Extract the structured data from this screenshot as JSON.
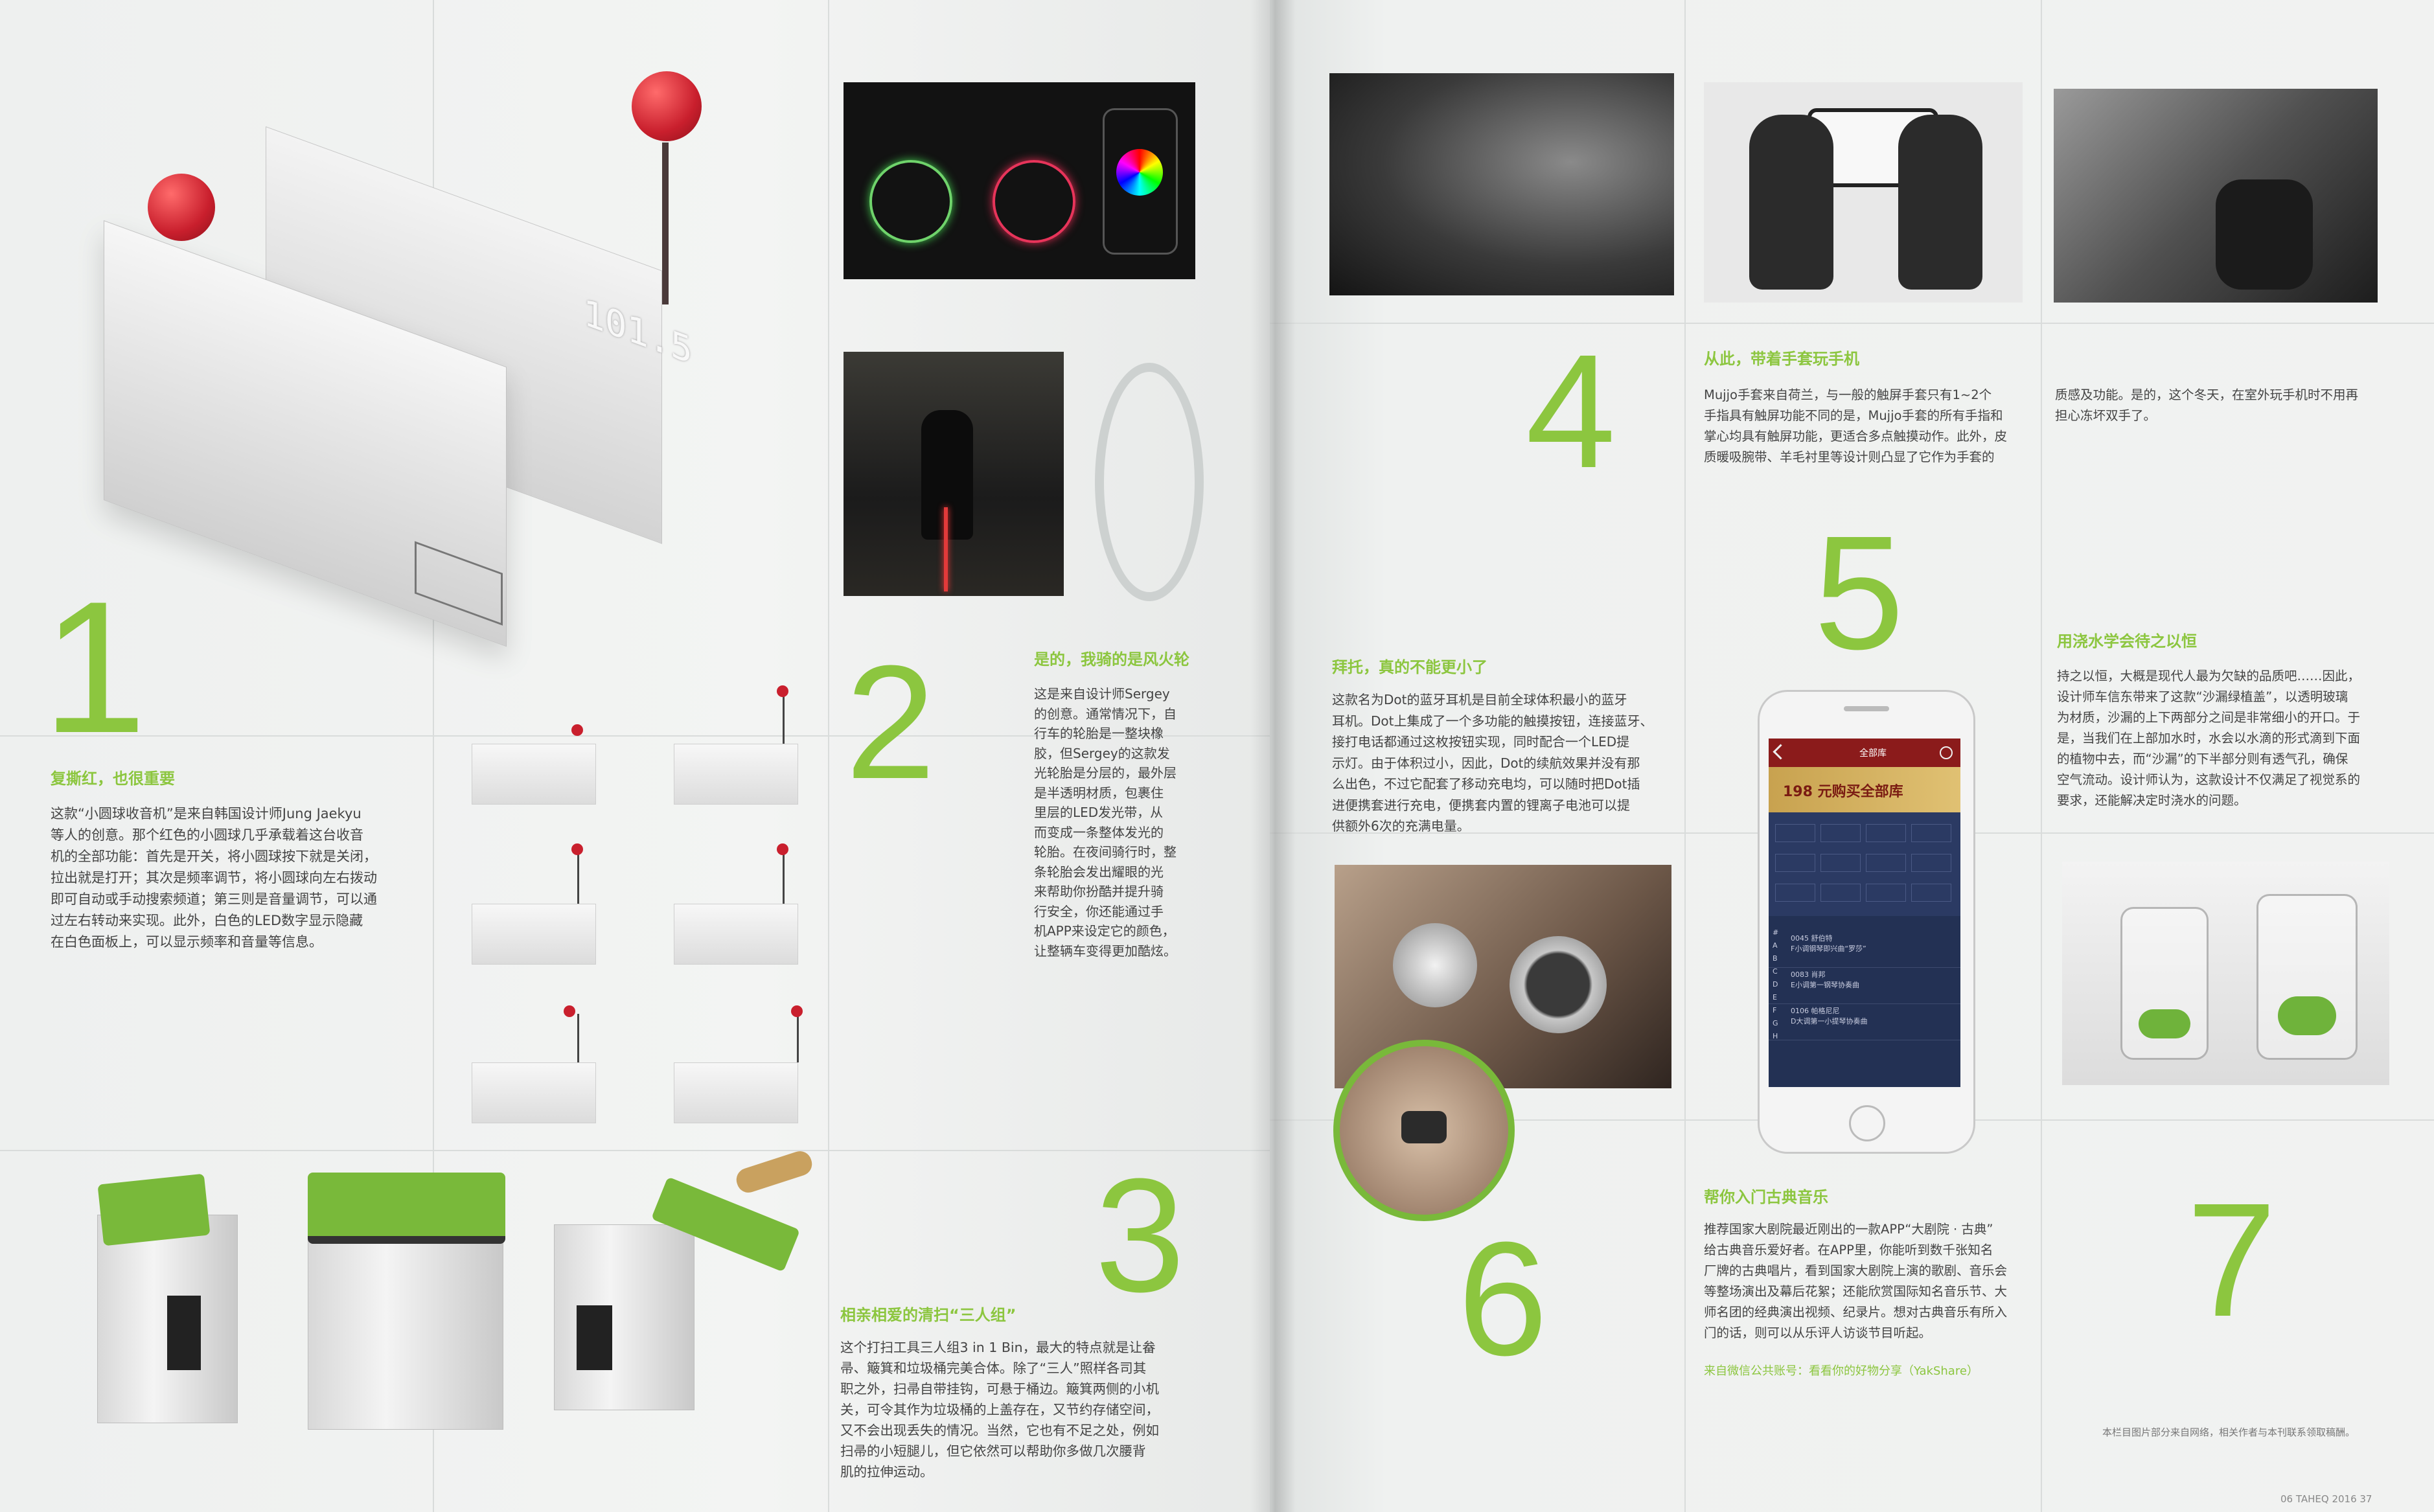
{
  "colors": {
    "accent_green": "#8cc63f",
    "ball_red": "#c91f2d",
    "paper": "#eef0ef"
  },
  "left_page": {
    "radio_panel_text": "101.5",
    "item1": {
      "number": "1",
      "heading": "复撕红，也很重要",
      "lines": [
        "这款“小圆球收音机”是来自韩国设计师Jung Jaekyu",
        "等人的创意。那个红色的小圆球几乎承载着这台收音",
        "机的全部功能：首先是开关，将小圆球按下就是关闭，",
        "拉出就是打开；其次是频率调节，将小圆球向左右拨动",
        "即可自动或手动搜索频道；第三则是音量调节，可以通",
        "过左右转动来实现。此外，白色的LED数字显示隐藏",
        "在白色面板上，可以显示频率和音量等信息。"
      ]
    },
    "item2": {
      "number": "2",
      "heading": "是的，我骑的是风火轮",
      "lines": [
        "这是来自设计师Sergey",
        "的创意。通常情况下，自",
        "行车的轮胎是一整块橡",
        "胶，但Sergey的这款发",
        "光轮胎是分层的，最外层",
        "是半透明材质，包裹住",
        "里层的LED发光带，从",
        "而变成一条整体发光的",
        "轮胎。在夜间骑行时，整",
        "条轮胎会发出耀眼的光",
        "来帮助你扮酷并提升骑",
        "行安全，你还能通过手",
        "机APP来设定它的颜色，",
        "让整辆车变得更加酷炫。"
      ]
    },
    "item3": {
      "number": "3",
      "heading": "相亲相爱的清扫“三人组”",
      "lines": [
        "这个打扫工具三人组3 in 1 Bin，最大的特点就是让畚",
        "帚、簸箕和垃圾桶完美合体。除了“三人”照样各司其",
        "职之外，扫帚自带挂钩，可悬于桶边。簸箕两侧的小机",
        "关，可令其作为垃圾桶的上盖存在，又节约存储空间，",
        "又不会出现丢失的情况。当然，它也有不足之处，例如",
        "扫帚的小短腿儿，但它依然可以帮助你多做几次腰背",
        "肌的拉伸运动。"
      ]
    }
  },
  "right_page": {
    "item4": {
      "number": "4",
      "heading": "从此，带着手套玩手机",
      "lines": [
        "Mujjo手套来自荷兰，与一般的触屏手套只有1~2个",
        "手指具有触屏功能不同的是，Mujjo手套的所有手指和",
        "掌心均具有触屏功能，更适合多点触摸动作。此外，皮",
        "质暖吸腕带、羊毛衬里等设计则凸显了它作为手套的"
      ],
      "continued_lines": [
        "质感及功能。是的，这个冬天，在室外玩手机时不用再",
        "担心冻坏双手了。"
      ]
    },
    "item5": {
      "number": "5",
      "heading": "帮你入门古典音乐",
      "lines": [
        "推荐国家大剧院最近刚出的一款APP“大剧院 · 古典”",
        "给古典音乐爱好者。在APP里，你能听到数千张知名",
        "厂牌的古典唱片，看到国家大剧院上演的歌剧、音乐会",
        "等整场演出及幕后花絮；还能欣赏国际知名音乐节、大",
        "师名团的经典演出视频、纪录片。想对古典音乐有所入",
        "门的话，则可以从乐评人访谈节目听起。"
      ],
      "source": "来自微信公共账号：看看你的好物分享（YakShare）"
    },
    "item6": {
      "number": "6",
      "heading": "拜托，真的不能更小了",
      "lines": [
        "这款名为Dot的蓝牙耳机是目前全球体积最小的蓝牙",
        "耳机。Dot上集成了一个多功能的触摸按钮，连接蓝牙、",
        "接打电话都通过这枚按钮实现，同时配合一个LED提",
        "示灯。由于体积过小，因此，Dot的续航效果并没有那",
        "么出色，不过它配套了移动充电均，可以随时把Dot插",
        "进便携套进行充电，便携套内置的锂离子电池可以提",
        "供额外6次的充满电量。"
      ]
    },
    "item7": {
      "number": "7",
      "heading": "用浇水学会待之以恒",
      "lines": [
        "持之以恒，大概是现代人最为欠缺的品质吧……因此，",
        "设计师车信东带来了这款“沙漏绿植盖”，以透明玻璃",
        "为材质，沙漏的上下两部分之间是非常细小的开口。于",
        "是，当我们在上部加水时，水会以水滴的形式滴到下面",
        "的植物中去，而“沙漏”的下半部分则有透气孔，确保",
        "空气流动。设计师认为，这款设计不仅满足了视觉系的",
        "要求，还能解决定时浇水的问题。"
      ]
    },
    "phone_app": {
      "top_tab": "全部库",
      "promo": "198 元购买全部库",
      "rows": [
        {
          "id": "0045",
          "title": "舒伯特",
          "sub": "F小调钢琴即兴曲“罗莎”"
        },
        {
          "id": "0083",
          "title": "肖邦",
          "sub": "E小调第一钢琴协奏曲"
        },
        {
          "id": "0106",
          "title": "帕格尼尼",
          "sub": "D大调第一小提琴协奏曲"
        }
      ],
      "index_letters": "#ABCDEFGH"
    },
    "credit_note": "本栏目图片部分来自网络，相关作者与本刊联系领取稿酬。",
    "folio": "06 TAHEQ 2016  37"
  }
}
